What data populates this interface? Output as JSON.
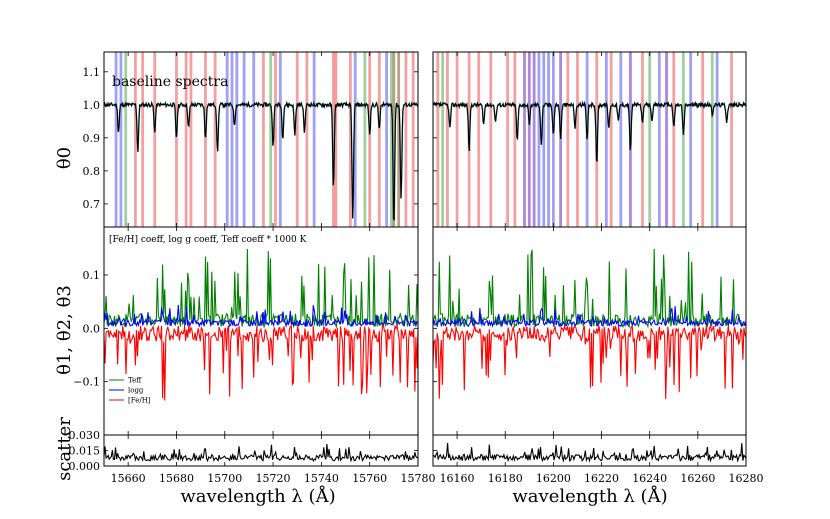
{
  "chart_data": {
    "type": "line",
    "title": "",
    "xlabel": "wavelength λ (Å)",
    "panels": {
      "left_range": [
        15650,
        15780
      ],
      "right_range": [
        16150,
        16280
      ],
      "left_ticks": [
        15660,
        15680,
        15700,
        15720,
        15740,
        15760,
        15780
      ],
      "right_ticks": [
        16160,
        16180,
        16200,
        16220,
        16240,
        16260,
        16280
      ]
    },
    "rows": [
      {
        "id": "theta0",
        "ylabel": "θ0",
        "ylim": [
          0.63,
          1.16
        ],
        "ticks": [
          "0.7",
          "0.8",
          "0.9",
          "1.0",
          "1.1"
        ],
        "tick_values": [
          0.7,
          0.8,
          0.9,
          1.0,
          1.1
        ],
        "annotation": "baseline spectra"
      },
      {
        "id": "theta123",
        "ylabel": "θ1, θ2, θ3",
        "ylim": [
          -0.2,
          0.19
        ],
        "ticks": [
          "−0.1",
          "0.0",
          "0.1"
        ],
        "tick_values": [
          -0.1,
          0.0,
          0.1
        ],
        "annotation": "[Fe/H] coeff, log g coeff, Teff coeff * 1000 K"
      },
      {
        "id": "scatter",
        "ylabel": "scatter",
        "ylim": [
          0,
          0.03
        ],
        "ticks": [
          "0.000",
          "0.015",
          "0.030"
        ],
        "tick_values": [
          0,
          0.015,
          0.03
        ],
        "annotation": ""
      }
    ],
    "series": [
      {
        "name": "Teff",
        "color": "#008000",
        "baseline": 0.015,
        "noise": 0.025,
        "approx_peak": 0.17
      },
      {
        "name": "logg",
        "color": "#0000ff",
        "baseline": 0.01,
        "noise": 0.012,
        "approx_peak": 0.06
      },
      {
        "name": "[Fe/H]",
        "color": "#ff0000",
        "baseline": -0.01,
        "noise": 0.03,
        "approx_min": -0.15
      }
    ],
    "baseline_spectrum": {
      "color": "#000000",
      "continuum": 1.0,
      "left_absorption_lines": [
        [
          15656,
          0.92
        ],
        [
          15664,
          0.86
        ],
        [
          15671,
          0.92
        ],
        [
          15680,
          0.9
        ],
        [
          15685,
          0.93
        ],
        [
          15692,
          0.9
        ],
        [
          15697,
          0.86
        ],
        [
          15704,
          0.94
        ],
        [
          15720,
          0.88
        ],
        [
          15724,
          0.9
        ],
        [
          15729,
          0.91
        ],
        [
          15733,
          0.92
        ],
        [
          15745,
          0.75
        ],
        [
          15753,
          0.65
        ],
        [
          15760,
          0.91
        ],
        [
          15764,
          0.93
        ],
        [
          15770,
          0.63
        ],
        [
          15773,
          0.72
        ]
      ],
      "right_absorption_lines": [
        [
          16157,
          0.93
        ],
        [
          16165,
          0.86
        ],
        [
          16171,
          0.94
        ],
        [
          16176,
          0.95
        ],
        [
          16185,
          0.89
        ],
        [
          16190,
          0.94
        ],
        [
          16195,
          0.88
        ],
        [
          16200,
          0.91
        ],
        [
          16203,
          0.9
        ],
        [
          16209,
          0.93
        ],
        [
          16214,
          0.89
        ],
        [
          16218,
          0.82
        ],
        [
          16223,
          0.93
        ],
        [
          16227,
          0.95
        ],
        [
          16232,
          0.86
        ],
        [
          16237,
          0.94
        ],
        [
          16241,
          0.95
        ],
        [
          16250,
          0.93
        ],
        [
          16254,
          0.91
        ],
        [
          16266,
          0.97
        ],
        [
          16272,
          0.95
        ]
      ]
    },
    "scatter_series": {
      "color": "#000000",
      "baseline": 0.008,
      "approx_peak": 0.025
    },
    "legend": {
      "position": "bottom-left of middle row in left panel",
      "entries": [
        "Teff",
        "logg",
        "[Fe/H]"
      ]
    },
    "highlight_bands": {
      "description": "vertical translucent colored bands in the top row marking lines sensitive to each label",
      "colors": {
        "red": "#f08080",
        "blue": "#8080f0",
        "green": "#80c080",
        "purple": "#9060d0",
        "brown": "#a08060"
      },
      "left": [
        [
          15655,
          "blue"
        ],
        [
          15657,
          "blue"
        ],
        [
          15659,
          "green"
        ],
        [
          15663,
          "red"
        ],
        [
          15666,
          "red"
        ],
        [
          15671,
          "red"
        ],
        [
          15680,
          "red"
        ],
        [
          15684,
          "red"
        ],
        [
          15686,
          "red"
        ],
        [
          15692,
          "red"
        ],
        [
          15696,
          "red"
        ],
        [
          15701,
          "blue"
        ],
        [
          15703,
          "blue"
        ],
        [
          15705,
          "blue"
        ],
        [
          15708,
          "blue"
        ],
        [
          15712,
          "blue"
        ],
        [
          15716,
          "red"
        ],
        [
          15719,
          "green"
        ],
        [
          15721,
          "red"
        ],
        [
          15723,
          "blue"
        ],
        [
          15730,
          "red"
        ],
        [
          15734,
          "red"
        ],
        [
          15737,
          "blue"
        ],
        [
          15745,
          "red"
        ],
        [
          15746,
          "red"
        ],
        [
          15752,
          "red"
        ],
        [
          15754,
          "blue"
        ],
        [
          15758,
          "green"
        ],
        [
          15760,
          "red"
        ],
        [
          15764,
          "red"
        ],
        [
          15767,
          "blue"
        ],
        [
          15769,
          "green"
        ],
        [
          15770,
          "brown"
        ],
        [
          15772,
          "brown"
        ],
        [
          15775,
          "red"
        ],
        [
          15778,
          "red"
        ]
      ],
      "right": [
        [
          16152,
          "red"
        ],
        [
          16154,
          "green"
        ],
        [
          16156,
          "red"
        ],
        [
          16160,
          "red"
        ],
        [
          16165,
          "red"
        ],
        [
          16169,
          "red"
        ],
        [
          16174,
          "red"
        ],
        [
          16181,
          "red"
        ],
        [
          16184,
          "red"
        ],
        [
          16188,
          "purple"
        ],
        [
          16190,
          "purple"
        ],
        [
          16192,
          "purple"
        ],
        [
          16194,
          "blue"
        ],
        [
          16196,
          "blue"
        ],
        [
          16198,
          "blue"
        ],
        [
          16200,
          "blue"
        ],
        [
          16203,
          "purple"
        ],
        [
          16206,
          "red"
        ],
        [
          16210,
          "red"
        ],
        [
          16214,
          "blue"
        ],
        [
          16218,
          "red"
        ],
        [
          16222,
          "blue"
        ],
        [
          16224,
          "red"
        ],
        [
          16228,
          "blue"
        ],
        [
          16232,
          "purple"
        ],
        [
          16237,
          "red"
        ],
        [
          16240,
          "green"
        ],
        [
          16244,
          "blue"
        ],
        [
          16247,
          "purple"
        ],
        [
          16250,
          "red"
        ],
        [
          16254,
          "green"
        ],
        [
          16257,
          "blue"
        ],
        [
          16262,
          "red"
        ],
        [
          16266,
          "green"
        ],
        [
          16268,
          "blue"
        ],
        [
          16274,
          "red"
        ]
      ]
    }
  }
}
